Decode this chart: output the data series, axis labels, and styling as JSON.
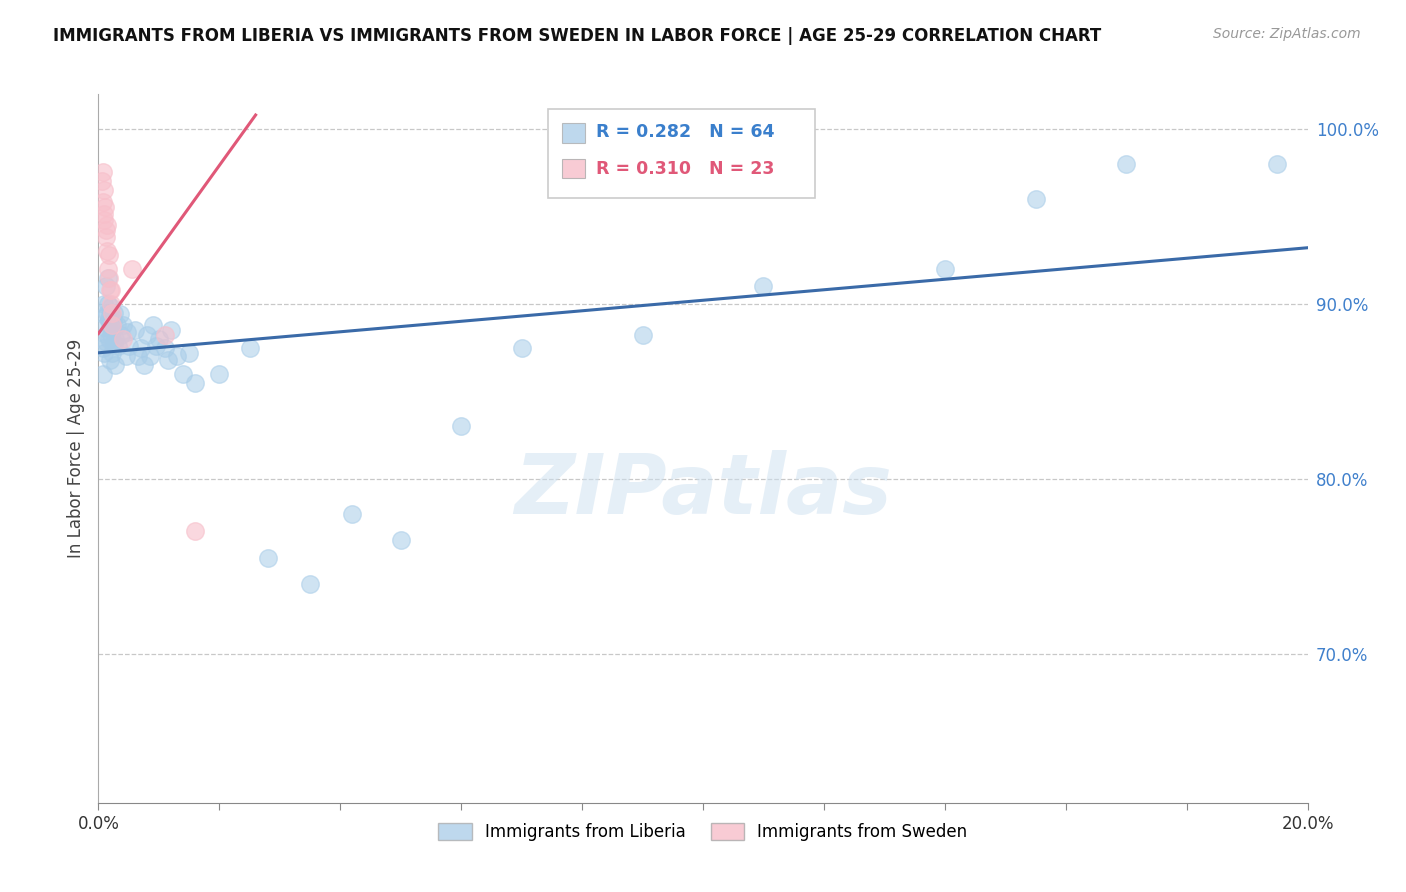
{
  "title": "IMMIGRANTS FROM LIBERIA VS IMMIGRANTS FROM SWEDEN IN LABOR FORCE | AGE 25-29 CORRELATION CHART",
  "source": "Source: ZipAtlas.com",
  "ylabel": "In Labor Force | Age 25-29",
  "xlim": [
    0.0,
    0.2
  ],
  "ylim": [
    0.615,
    1.02
  ],
  "ytick_vals": [
    1.0,
    0.9,
    0.8,
    0.7
  ],
  "ytick_labels_right": [
    "100.0%",
    "90.0%",
    "80.0%",
    "70.0%"
  ],
  "legend1_r": "0.282",
  "legend1_n": "64",
  "legend2_r": "0.310",
  "legend2_n": "23",
  "legend1_label": "Immigrants from Liberia",
  "legend2_label": "Immigrants from Sweden",
  "blue_color": "#a8cce8",
  "pink_color": "#f7bfca",
  "blue_line_color": "#3a6aa8",
  "pink_line_color": "#e05878",
  "blue_r_color": "#3a7fcc",
  "pink_r_color": "#e05878",
  "right_tick_color": "#4080cc",
  "watermark_text": "ZIPatlas",
  "background_color": "#ffffff",
  "grid_color": "#c8c8c8",
  "blue_line_intercept": 0.872,
  "blue_line_slope": 0.3,
  "pink_line_intercept": 0.883,
  "pink_line_slope": 4.8,
  "pink_line_xmax": 0.026,
  "blue_points_x": [
    0.0008,
    0.0008,
    0.001,
    0.001,
    0.001,
    0.0012,
    0.0012,
    0.0013,
    0.0014,
    0.0015,
    0.0016,
    0.0016,
    0.0017,
    0.0018,
    0.0018,
    0.0019,
    0.002,
    0.002,
    0.0021,
    0.0022,
    0.0023,
    0.0024,
    0.0025,
    0.0026,
    0.0027,
    0.0028,
    0.003,
    0.0032,
    0.0035,
    0.0038,
    0.004,
    0.0045,
    0.0048,
    0.005,
    0.006,
    0.0065,
    0.007,
    0.0075,
    0.008,
    0.0085,
    0.009,
    0.0095,
    0.01,
    0.011,
    0.0115,
    0.012,
    0.013,
    0.014,
    0.015,
    0.016,
    0.02,
    0.025,
    0.028,
    0.035,
    0.042,
    0.05,
    0.06,
    0.07,
    0.09,
    0.11,
    0.14,
    0.155,
    0.17,
    0.195
  ],
  "blue_points_y": [
    0.875,
    0.86,
    0.9,
    0.887,
    0.872,
    0.893,
    0.878,
    0.91,
    0.895,
    0.882,
    0.915,
    0.9,
    0.89,
    0.88,
    0.892,
    0.868,
    0.898,
    0.882,
    0.886,
    0.893,
    0.872,
    0.89,
    0.877,
    0.895,
    0.88,
    0.865,
    0.888,
    0.876,
    0.894,
    0.882,
    0.888,
    0.87,
    0.884,
    0.876,
    0.885,
    0.87,
    0.875,
    0.865,
    0.882,
    0.87,
    0.888,
    0.876,
    0.88,
    0.875,
    0.868,
    0.885,
    0.87,
    0.86,
    0.872,
    0.855,
    0.86,
    0.875,
    0.755,
    0.74,
    0.78,
    0.765,
    0.83,
    0.875,
    0.882,
    0.91,
    0.92,
    0.96,
    0.98,
    0.98
  ],
  "pink_points_x": [
    0.0006,
    0.0007,
    0.0008,
    0.0009,
    0.0009,
    0.001,
    0.0011,
    0.0012,
    0.0013,
    0.0014,
    0.0015,
    0.0016,
    0.0017,
    0.0018,
    0.0019,
    0.002,
    0.0021,
    0.0022,
    0.0023,
    0.004,
    0.0055,
    0.011,
    0.016
  ],
  "pink_points_y": [
    0.97,
    0.975,
    0.958,
    0.965,
    0.951,
    0.948,
    0.955,
    0.942,
    0.938,
    0.945,
    0.93,
    0.92,
    0.928,
    0.915,
    0.908,
    0.9,
    0.908,
    0.895,
    0.888,
    0.88,
    0.92,
    0.882,
    0.77
  ]
}
